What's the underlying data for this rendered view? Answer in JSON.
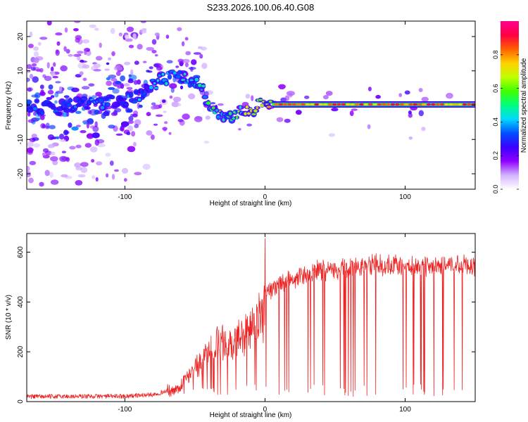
{
  "figure": {
    "title": "S233.2026.100.06.40.G08"
  },
  "chart_data": [
    {
      "type": "heatmap",
      "xlabel": "Height of straight line (km)",
      "ylabel": "Frequency (Hz)",
      "xlim": [
        -170,
        150
      ],
      "ylim": [
        -24.5,
        24.5
      ],
      "xticks": [
        -100,
        0,
        100
      ],
      "yticks": [
        -20,
        -10,
        0,
        10,
        20
      ],
      "grid": false,
      "colorbar": {
        "label": "Normalized spectral amplitude",
        "range": [
          0.0,
          1.0
        ],
        "ticks": [
          0.0,
          0.2,
          0.4,
          0.6,
          0.8
        ],
        "colormap": "rainbow-light",
        "colors": [
          "#ffffff",
          "#d2b4ff",
          "#9000ff",
          "#3a00ff",
          "#0050ff",
          "#00d8ff",
          "#00ff80",
          "#40ff00",
          "#c0ff00",
          "#ffd000",
          "#ff6000",
          "#ff0040",
          "#ff0090"
        ]
      },
      "ridge": [
        {
          "x": -170,
          "f": 0,
          "a": 0.3
        },
        {
          "x": -150,
          "f": -1,
          "a": 0.32
        },
        {
          "x": -130,
          "f": 0.5,
          "a": 0.35
        },
        {
          "x": -110,
          "f": 1,
          "a": 0.33
        },
        {
          "x": -95,
          "f": 2,
          "a": 0.36
        },
        {
          "x": -85,
          "f": 4,
          "a": 0.38
        },
        {
          "x": -75,
          "f": 7,
          "a": 0.42
        },
        {
          "x": -65,
          "f": 8.5,
          "a": 0.45
        },
        {
          "x": -55,
          "f": 8,
          "a": 0.47
        },
        {
          "x": -45,
          "f": 5,
          "a": 0.46
        },
        {
          "x": -40,
          "f": 0,
          "a": 0.5
        },
        {
          "x": -35,
          "f": -3,
          "a": 0.52
        },
        {
          "x": -28,
          "f": -2.5,
          "a": 0.55
        },
        {
          "x": -22,
          "f": -3,
          "a": 0.56
        },
        {
          "x": -15,
          "f": -1,
          "a": 0.6
        },
        {
          "x": -8,
          "f": -1.5,
          "a": 0.62
        },
        {
          "x": 0,
          "f": 2,
          "a": 0.7
        },
        {
          "x": 5,
          "f": 0.5,
          "a": 0.8
        },
        {
          "x": 20,
          "f": 0.2,
          "a": 0.9
        },
        {
          "x": 150,
          "f": 0.2,
          "a": 0.95
        }
      ]
    },
    {
      "type": "line",
      "xlabel": "Height of straight line (km)",
      "ylabel": "SNR (10 * v/v)",
      "xlim": [
        -170,
        150
      ],
      "ylim": [
        0,
        675
      ],
      "xticks": [
        -100,
        0,
        100
      ],
      "yticks": [
        0,
        200,
        400,
        600
      ],
      "grid": false,
      "line_color": "#ee2222",
      "envelope": [
        {
          "x": -170,
          "y": 20
        },
        {
          "x": -100,
          "y": 22
        },
        {
          "x": -80,
          "y": 28
        },
        {
          "x": -65,
          "y": 50
        },
        {
          "x": -55,
          "y": 120
        },
        {
          "x": -45,
          "y": 220
        },
        {
          "x": -35,
          "y": 290
        },
        {
          "x": -25,
          "y": 310
        },
        {
          "x": -15,
          "y": 350
        },
        {
          "x": -5,
          "y": 420
        },
        {
          "x": 0,
          "y": 460
        },
        {
          "x": 10,
          "y": 500
        },
        {
          "x": 25,
          "y": 540
        },
        {
          "x": 40,
          "y": 560
        },
        {
          "x": 60,
          "y": 570
        },
        {
          "x": 80,
          "y": 585
        },
        {
          "x": 100,
          "y": 580
        },
        {
          "x": 120,
          "y": 575
        },
        {
          "x": 140,
          "y": 585
        },
        {
          "x": 150,
          "y": 575
        }
      ],
      "peak": {
        "x": 0,
        "y": 655
      }
    }
  ]
}
